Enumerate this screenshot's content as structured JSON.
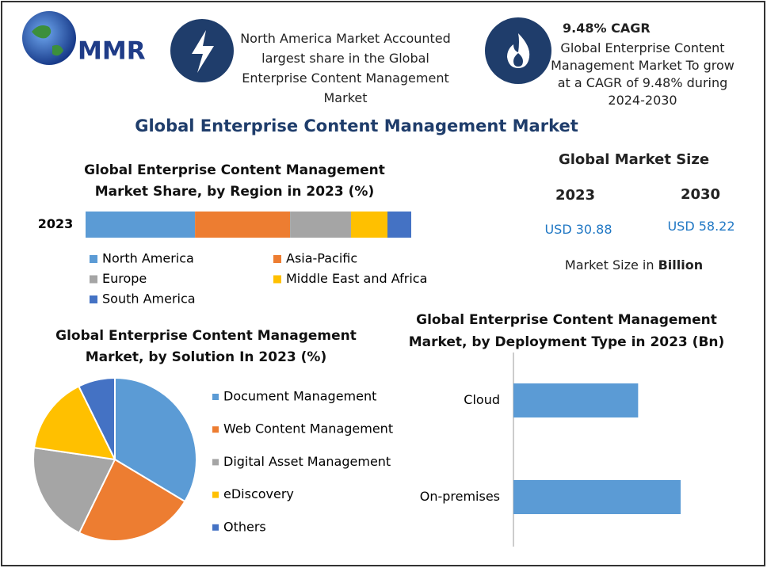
{
  "logo": "MMR",
  "highlights": [
    {
      "text": "North America Market Accounted largest share in the Global Enterprise Content Management Market"
    },
    {
      "title": "9.48% CAGR",
      "text": "Global Enterprise Content Management Market To grow at a CAGR of 9.48% during 2024-2030"
    }
  ],
  "title": "Global Enterprise Content Management Market",
  "market_size": {
    "title": "Global Market Size",
    "years": [
      "2023",
      "2030"
    ],
    "values": [
      "USD 30.88",
      "USD 58.22"
    ],
    "note": "Market Size in",
    "note_unit": "Billion"
  },
  "chart_data": [
    {
      "type": "stacked-bar",
      "title": "Global Enterprise Content Management Market Share, by Region in 2023 (%)",
      "categories": [
        "2023"
      ],
      "series": [
        {
          "name": "North America",
          "color": "#5b9bd5",
          "values": [
            33.6
          ]
        },
        {
          "name": "Asia-Pacific",
          "color": "#ed7d31",
          "values": [
            29.2
          ]
        },
        {
          "name": "Europe",
          "color": "#a5a5a5",
          "values": [
            18.7
          ]
        },
        {
          "name": "Middle East and Africa",
          "color": "#ffc000",
          "values": [
            11.2
          ]
        },
        {
          "name": "South America",
          "color": "#4472c4",
          "values": [
            7.3
          ]
        }
      ]
    },
    {
      "type": "pie",
      "title": "Global Enterprise Content Management Market, by Solution  In 2023 (%)",
      "categories": [
        "Document Management",
        "Web Content Management",
        "Digital Asset Management",
        "eDiscovery",
        "Others"
      ],
      "values": [
        33.6,
        23.6,
        20.1,
        15.4,
        7.3
      ],
      "colors": [
        "#5b9bd5",
        "#ed7d31",
        "#a5a5a5",
        "#ffc000",
        "#4472c4"
      ]
    },
    {
      "type": "hbar",
      "title": "Global Enterprise Content Management Market, by Deployment Type in 2023 (Bn)",
      "categories": [
        "Cloud",
        "On-premises"
      ],
      "values": [
        13.2,
        17.7
      ],
      "color": "#5b9bd5"
    }
  ]
}
